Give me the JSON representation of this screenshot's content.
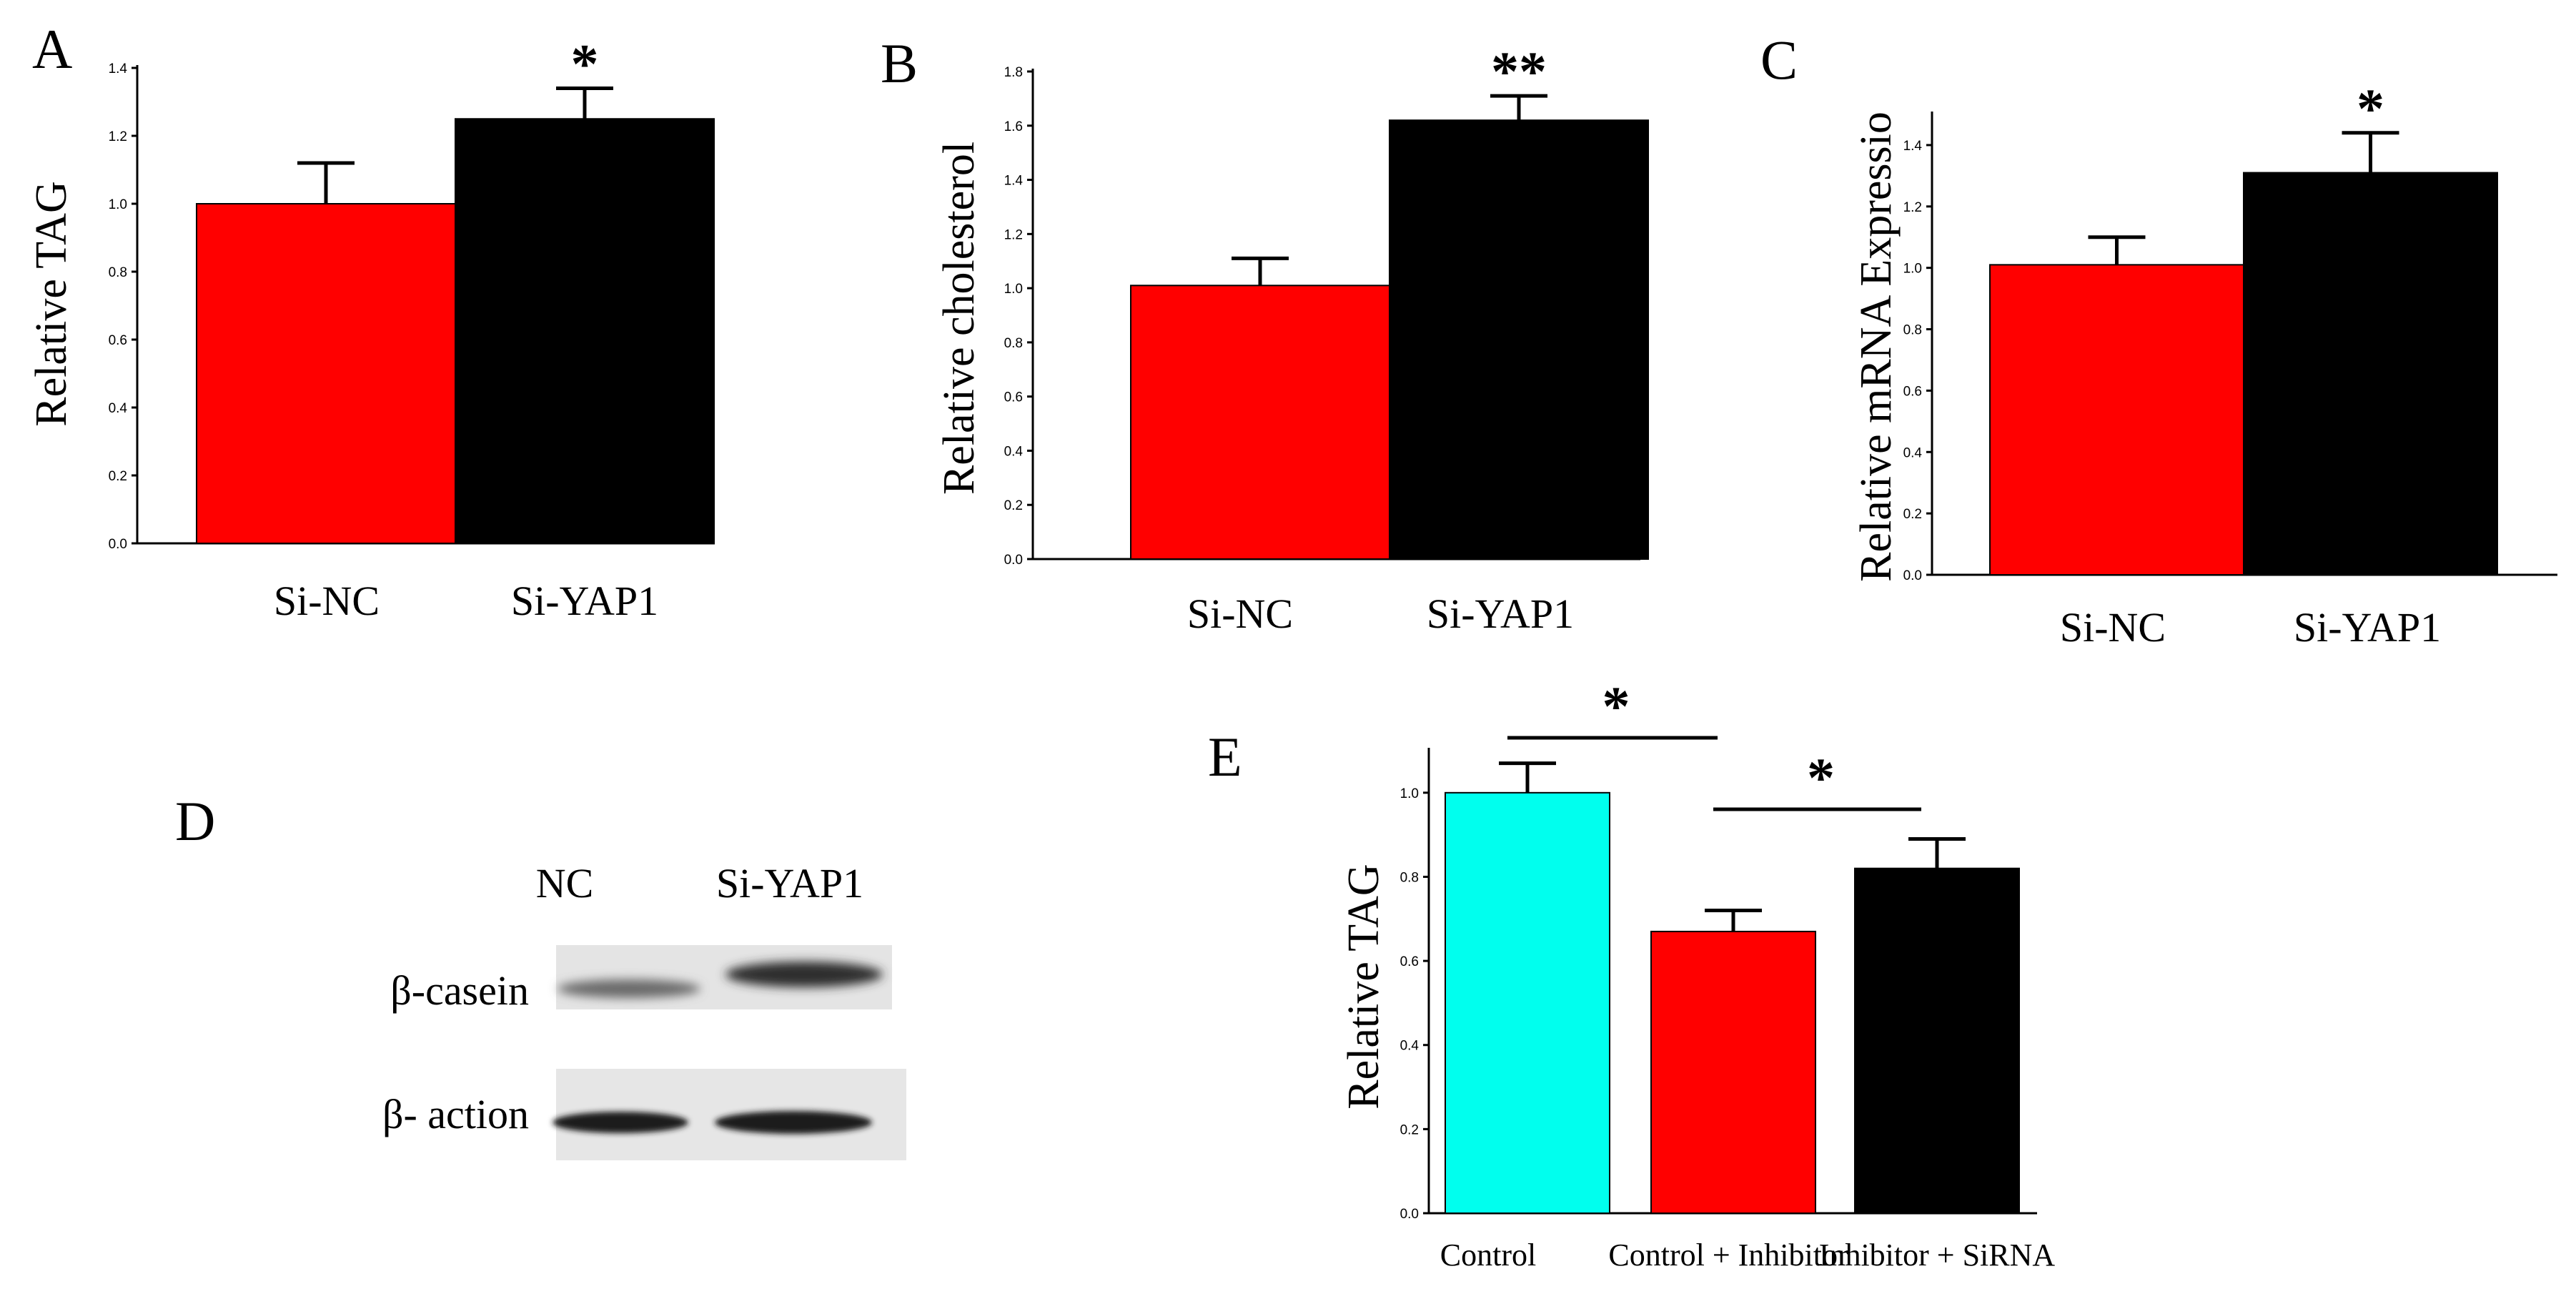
{
  "colors": {
    "red": "#ff0000",
    "black": "#000000",
    "cyan": "#00ffee"
  },
  "chart_data": [
    {
      "panel": "A",
      "type": "bar",
      "ylabel": "Relative TAG",
      "ylim": [
        0,
        1.4
      ],
      "yticks": [
        "0.0",
        "0.2",
        "0.4",
        "0.6",
        "0.8",
        "1.0",
        "1.2",
        "1.4"
      ],
      "categories": [
        "Si-NC",
        "Si-YAP1"
      ],
      "values": [
        1.0,
        1.25
      ],
      "errors": [
        0.12,
        0.09
      ],
      "bar_colors": [
        "red",
        "black"
      ],
      "significance": [
        {
          "bar": 1,
          "label": "*"
        }
      ]
    },
    {
      "panel": "B",
      "type": "bar",
      "ylabel": "Relative cholesterol",
      "ylim": [
        0,
        1.8
      ],
      "yticks": [
        "0.0",
        "0.2",
        "0.4",
        "0.6",
        "0.8",
        "1.0",
        "1.2",
        "1.4",
        "1.6",
        "1.8"
      ],
      "categories": [
        "Si-NC",
        "Si-YAP1"
      ],
      "values": [
        1.01,
        1.62
      ],
      "errors": [
        0.1,
        0.09
      ],
      "bar_colors": [
        "red",
        "black"
      ],
      "significance": [
        {
          "bar": 1,
          "label": "**"
        }
      ]
    },
    {
      "panel": "C",
      "type": "bar",
      "ylabel": "Relative mRNA Expressio",
      "ylim": [
        0,
        1.5
      ],
      "yticks": [
        "0.0",
        "0.2",
        "0.4",
        "0.6",
        "0.8",
        "1.0",
        "1.2",
        "1.4"
      ],
      "categories": [
        "Si-NC",
        "Si-YAP1"
      ],
      "values": [
        1.01,
        1.31
      ],
      "errors": [
        0.09,
        0.13
      ],
      "bar_colors": [
        "red",
        "black"
      ],
      "significance": [
        {
          "bar": 1,
          "label": "*"
        }
      ]
    },
    {
      "panel": "E",
      "type": "bar",
      "ylabel": "Relative TAG",
      "ylim": [
        0,
        1.1
      ],
      "yticks": [
        "0.0",
        "0.2",
        "0.4",
        "0.6",
        "0.8",
        "1.0"
      ],
      "categories": [
        "Control",
        "Control + Inhibitor",
        "Inhibitor + SiRNA"
      ],
      "values": [
        1.0,
        0.67,
        0.82
      ],
      "errors": [
        0.07,
        0.05,
        0.07
      ],
      "bar_colors": [
        "cyan",
        "red",
        "black"
      ],
      "brackets": [
        {
          "from": 0,
          "to": 1,
          "label": "*"
        },
        {
          "from": 1,
          "to": 2,
          "label": "*"
        }
      ]
    }
  ],
  "blot": {
    "panel": "D",
    "lanes": [
      "NC",
      "Si-YAP1"
    ],
    "rows": [
      "β-casein",
      "β- action"
    ]
  }
}
